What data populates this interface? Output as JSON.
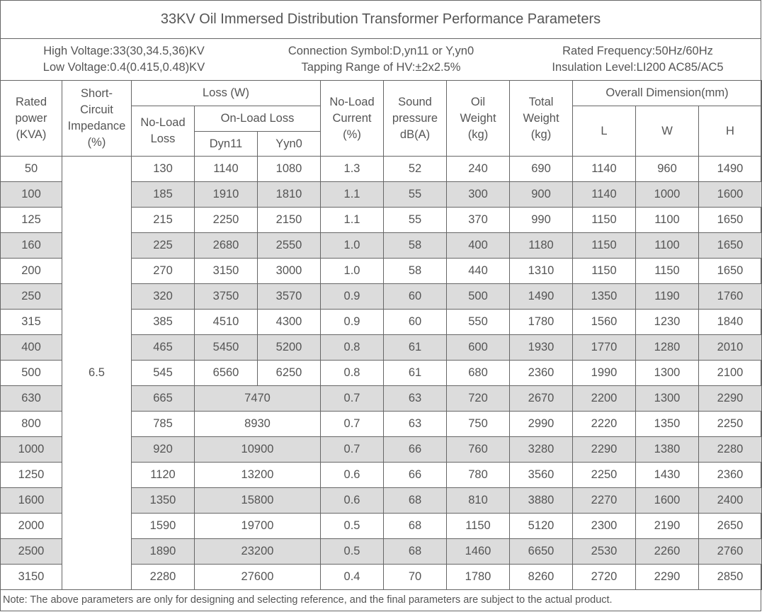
{
  "title": "33KV Oil Immersed Distribution Transformer Performance Parameters",
  "info": {
    "high_voltage": "High Voltage:33(30,34.5,36)KV",
    "low_voltage": "Low Voltage:0.4(0.415,0.48)KV",
    "connection_symbol": "Connection Symbol:D,yn11 or Y,yn0",
    "tapping_range": "Tapping Range of HV:±2x2.5%",
    "rated_frequency": "Rated Frequency:50Hz/60Hz",
    "insulation_level": "Insulation Level:LI200 AC85/AC5"
  },
  "headers": {
    "rated_power": [
      "Rated",
      "power",
      "(KVA)"
    ],
    "impedance": [
      "Short-",
      "Circuit",
      "Impedance",
      "(%)"
    ],
    "loss": "Loss (W)",
    "no_load_loss": [
      "No-Load",
      "Loss"
    ],
    "on_load_loss": "On-Load Loss",
    "dyn11": "Dyn11",
    "yyn0": "Yyn0",
    "no_load_current": [
      "No-Load",
      "Current",
      "(%)"
    ],
    "sound": [
      "Sound",
      "pressure",
      "dB(A)"
    ],
    "oil_weight": [
      "Oil",
      "Weight",
      "(kg)"
    ],
    "total_weight": [
      "Total",
      "Weight",
      "(kg)"
    ],
    "dimension": "Overall Dimension(mm)",
    "L": "L",
    "W": "W",
    "H": "H"
  },
  "impedance_value": "6.5",
  "rows": [
    {
      "power": "50",
      "nll": "130",
      "dyn11": "1140",
      "yyn0": "1080",
      "current": "1.3",
      "sound": "52",
      "oil": "240",
      "total": "690",
      "L": "1140",
      "W": "960",
      "H": "1490"
    },
    {
      "power": "100",
      "nll": "185",
      "dyn11": "1910",
      "yyn0": "1810",
      "current": "1.1",
      "sound": "55",
      "oil": "300",
      "total": "900",
      "L": "1140",
      "W": "1000",
      "H": "1600"
    },
    {
      "power": "125",
      "nll": "215",
      "dyn11": "2250",
      "yyn0": "2150",
      "current": "1.1",
      "sound": "55",
      "oil": "370",
      "total": "990",
      "L": "1150",
      "W": "1100",
      "H": "1650"
    },
    {
      "power": "160",
      "nll": "225",
      "dyn11": "2680",
      "yyn0": "2550",
      "current": "1.0",
      "sound": "58",
      "oil": "400",
      "total": "1180",
      "L": "1150",
      "W": "1100",
      "H": "1650"
    },
    {
      "power": "200",
      "nll": "270",
      "dyn11": "3150",
      "yyn0": "3000",
      "current": "1.0",
      "sound": "58",
      "oil": "440",
      "total": "1310",
      "L": "1150",
      "W": "1150",
      "H": "1650"
    },
    {
      "power": "250",
      "nll": "320",
      "dyn11": "3750",
      "yyn0": "3570",
      "current": "0.9",
      "sound": "60",
      "oil": "500",
      "total": "1490",
      "L": "1350",
      "W": "1190",
      "H": "1760"
    },
    {
      "power": "315",
      "nll": "385",
      "dyn11": "4510",
      "yyn0": "4300",
      "current": "0.9",
      "sound": "60",
      "oil": "550",
      "total": "1780",
      "L": "1560",
      "W": "1230",
      "H": "1840"
    },
    {
      "power": "400",
      "nll": "465",
      "dyn11": "5450",
      "yyn0": "5200",
      "current": "0.8",
      "sound": "61",
      "oil": "600",
      "total": "1930",
      "L": "1770",
      "W": "1280",
      "H": "2010"
    },
    {
      "power": "500",
      "nll": "545",
      "dyn11": "6560",
      "yyn0": "6250",
      "current": "0.8",
      "sound": "61",
      "oil": "680",
      "total": "2360",
      "L": "1990",
      "W": "1300",
      "H": "2100"
    },
    {
      "power": "630",
      "nll": "665",
      "onload": "7470",
      "current": "0.7",
      "sound": "63",
      "oil": "720",
      "total": "2670",
      "L": "2200",
      "W": "1300",
      "H": "2290"
    },
    {
      "power": "800",
      "nll": "785",
      "onload": "8930",
      "current": "0.7",
      "sound": "63",
      "oil": "750",
      "total": "2990",
      "L": "2220",
      "W": "1350",
      "H": "2250"
    },
    {
      "power": "1000",
      "nll": "920",
      "onload": "10900",
      "current": "0.7",
      "sound": "66",
      "oil": "760",
      "total": "3280",
      "L": "2290",
      "W": "1380",
      "H": "2280"
    },
    {
      "power": "1250",
      "nll": "1120",
      "onload": "13200",
      "current": "0.6",
      "sound": "66",
      "oil": "780",
      "total": "3560",
      "L": "2250",
      "W": "1430",
      "H": "2360"
    },
    {
      "power": "1600",
      "nll": "1350",
      "onload": "15800",
      "current": "0.6",
      "sound": "68",
      "oil": "810",
      "total": "3880",
      "L": "2270",
      "W": "1600",
      "H": "2400"
    },
    {
      "power": "2000",
      "nll": "1590",
      "onload": "19700",
      "current": "0.5",
      "sound": "68",
      "oil": "1150",
      "total": "5120",
      "L": "2300",
      "W": "2190",
      "H": "2650"
    },
    {
      "power": "2500",
      "nll": "1890",
      "onload": "23200",
      "current": "0.5",
      "sound": "68",
      "oil": "1460",
      "total": "6650",
      "L": "2530",
      "W": "2260",
      "H": "2760"
    },
    {
      "power": "3150",
      "nll": "2280",
      "onload": "27600",
      "current": "0.4",
      "sound": "70",
      "oil": "1780",
      "total": "8260",
      "L": "2720",
      "W": "2290",
      "H": "2850"
    }
  ],
  "note": "Note: The above parameters are only for designing and selecting  reference, and the final parameters are subject to the actual product."
}
